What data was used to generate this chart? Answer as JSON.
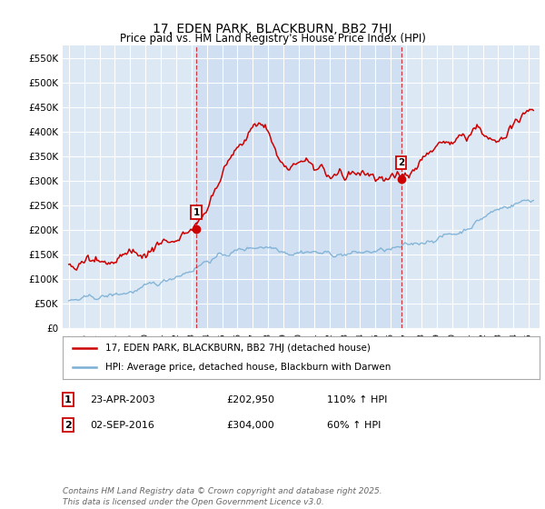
{
  "title": "17, EDEN PARK, BLACKBURN, BB2 7HJ",
  "subtitle": "Price paid vs. HM Land Registry's House Price Index (HPI)",
  "plot_bg_color": "#dce9f5",
  "shade_color": "#c8daf0",
  "ylim": [
    0,
    575000
  ],
  "yticks": [
    0,
    50000,
    100000,
    150000,
    200000,
    250000,
    300000,
    350000,
    400000,
    450000,
    500000,
    550000
  ],
  "ytick_labels": [
    "£0",
    "£50K",
    "£100K",
    "£150K",
    "£200K",
    "£250K",
    "£300K",
    "£350K",
    "£400K",
    "£450K",
    "£500K",
    "£550K"
  ],
  "sale1_date": 2003.31,
  "sale1_price": 202950,
  "sale2_date": 2016.67,
  "sale2_price": 304000,
  "legend_line1": "17, EDEN PARK, BLACKBURN, BB2 7HJ (detached house)",
  "legend_line2": "HPI: Average price, detached house, Blackburn with Darwen",
  "footer": "Contains HM Land Registry data © Crown copyright and database right 2025.\nThis data is licensed under the Open Government Licence v3.0.",
  "red_color": "#cc0000",
  "blue_color": "#7bafd4",
  "xlim_left": 1994.6,
  "xlim_right": 2025.7
}
